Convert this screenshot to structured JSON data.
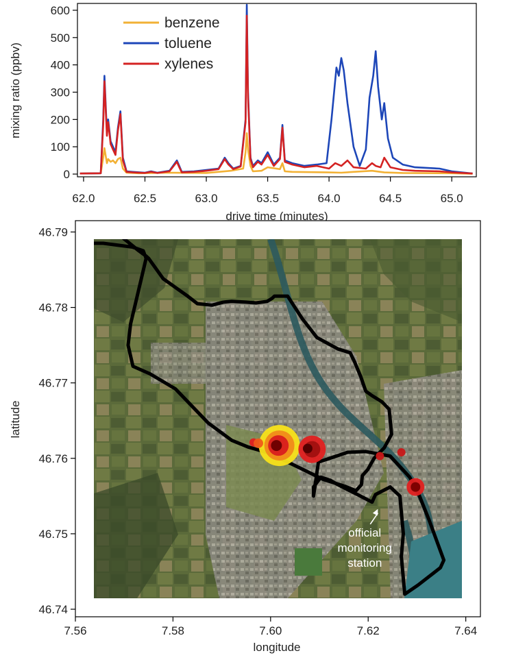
{
  "chart_data": [
    {
      "type": "line",
      "xlabel": "drive time (minutes)",
      "ylabel": "mixing ratio (ppbv)",
      "xlim": [
        61.95,
        65.2
      ],
      "ylim": [
        -10,
        625
      ],
      "xticks": [
        62.0,
        62.5,
        63.0,
        63.5,
        64.0,
        64.5,
        65.0
      ],
      "xtick_labels": [
        "62.0",
        "62.5",
        "63.0",
        "63.5",
        "64.0",
        "64.5",
        "65.0"
      ],
      "yticks": [
        0,
        100,
        200,
        300,
        400,
        500,
        600
      ],
      "ytick_labels": [
        "0",
        "100",
        "200",
        "300",
        "400",
        "500",
        "600"
      ],
      "legend_position": "top-left",
      "series": [
        {
          "name": "benzene",
          "color": "#f2b135",
          "x": [
            61.97,
            62.14,
            62.16,
            62.17,
            62.19,
            62.2,
            62.22,
            62.24,
            62.26,
            62.28,
            62.3,
            62.32,
            62.35,
            62.45,
            62.7,
            63.0,
            63.2,
            63.3,
            63.32,
            63.33,
            63.34,
            63.36,
            63.38,
            63.45,
            63.5,
            63.6,
            63.62,
            63.64,
            63.7,
            64.0,
            64.1,
            64.2,
            64.35,
            64.45,
            64.6,
            65.0,
            65.17
          ],
          "values": [
            2,
            3,
            60,
            95,
            40,
            55,
            45,
            50,
            40,
            55,
            60,
            20,
            5,
            3,
            5,
            4,
            12,
            20,
            80,
            150,
            90,
            30,
            10,
            12,
            25,
            18,
            40,
            10,
            8,
            6,
            5,
            8,
            12,
            6,
            4,
            3,
            1
          ]
        },
        {
          "name": "toluene",
          "color": "#1d46b8",
          "x": [
            61.97,
            62.14,
            62.16,
            62.17,
            62.19,
            62.2,
            62.22,
            62.24,
            62.26,
            62.28,
            62.3,
            62.32,
            62.35,
            62.4,
            62.5,
            62.55,
            62.6,
            62.7,
            62.76,
            62.78,
            62.8,
            62.9,
            63.0,
            63.1,
            63.15,
            63.18,
            63.22,
            63.28,
            63.32,
            63.33,
            63.34,
            63.36,
            63.38,
            63.42,
            63.45,
            63.5,
            63.55,
            63.6,
            63.62,
            63.64,
            63.7,
            63.8,
            63.9,
            63.98,
            64.02,
            64.06,
            64.08,
            64.1,
            64.12,
            64.15,
            64.2,
            64.25,
            64.3,
            64.33,
            64.36,
            64.38,
            64.4,
            64.43,
            64.45,
            64.48,
            64.52,
            64.6,
            64.7,
            64.9,
            65.0,
            65.17
          ],
          "values": [
            2,
            3,
            200,
            360,
            150,
            200,
            120,
            100,
            80,
            170,
            230,
            60,
            10,
            8,
            5,
            10,
            5,
            12,
            50,
            30,
            8,
            10,
            15,
            20,
            60,
            40,
            20,
            30,
            200,
            620,
            300,
            60,
            30,
            50,
            40,
            80,
            35,
            60,
            180,
            50,
            40,
            30,
            35,
            40,
            200,
            390,
            360,
            425,
            380,
            260,
            100,
            30,
            90,
            280,
            360,
            450,
            320,
            200,
            260,
            130,
            60,
            35,
            25,
            20,
            10,
            2
          ]
        },
        {
          "name": "xylenes",
          "color": "#d42222",
          "x": [
            61.97,
            62.14,
            62.16,
            62.17,
            62.19,
            62.2,
            62.22,
            62.24,
            62.26,
            62.28,
            62.3,
            62.32,
            62.35,
            62.4,
            62.5,
            62.55,
            62.6,
            62.7,
            62.76,
            62.78,
            62.8,
            62.9,
            63.0,
            63.1,
            63.15,
            63.18,
            63.22,
            63.28,
            63.32,
            63.33,
            63.34,
            63.36,
            63.38,
            63.42,
            63.45,
            63.5,
            63.55,
            63.6,
            63.62,
            63.64,
            63.7,
            63.8,
            63.9,
            64.0,
            64.05,
            64.1,
            64.15,
            64.2,
            64.3,
            64.35,
            64.38,
            64.42,
            64.45,
            64.5,
            64.6,
            64.7,
            64.9,
            65.0,
            65.17
          ],
          "values": [
            2,
            3,
            180,
            340,
            140,
            190,
            110,
            90,
            70,
            160,
            220,
            50,
            8,
            6,
            4,
            8,
            4,
            10,
            45,
            25,
            6,
            8,
            12,
            18,
            55,
            35,
            18,
            28,
            190,
            580,
            280,
            55,
            25,
            45,
            35,
            70,
            30,
            55,
            170,
            45,
            35,
            25,
            30,
            20,
            40,
            30,
            50,
            25,
            20,
            40,
            30,
            25,
            60,
            25,
            15,
            12,
            10,
            6,
            2
          ]
        }
      ]
    },
    {
      "type": "scatter",
      "xlabel": "longitude",
      "ylabel": "latitude",
      "xlim": [
        7.56,
        7.643
      ],
      "ylim": [
        46.739,
        46.7915
      ],
      "xticks": [
        7.56,
        7.58,
        7.6,
        7.62,
        7.64
      ],
      "xtick_labels": [
        "7.56",
        "7.58",
        "7.60",
        "7.62",
        "7.64"
      ],
      "yticks": [
        46.74,
        46.75,
        46.76,
        46.77,
        46.78,
        46.79
      ],
      "ytick_labels": [
        "46.74",
        "46.75",
        "46.76",
        "46.77",
        "46.78",
        "46.79"
      ],
      "background": "aerial-image",
      "track": {
        "name": "drive route",
        "color": "#000000",
        "lon": [
          7.5605,
          7.562,
          7.565,
          7.567,
          7.569,
          7.573,
          7.5745,
          7.575,
          7.578,
          7.583,
          7.585,
          7.588,
          7.5903,
          7.592,
          7.595,
          7.597,
          7.5993,
          7.6003,
          7.6008,
          7.6035,
          7.6065,
          7.6095,
          7.6138,
          7.6163,
          7.6172,
          7.6185,
          7.6195,
          7.6208,
          7.6228,
          7.6243,
          7.6248,
          7.6233,
          7.6212,
          7.6199,
          7.6188,
          7.6186,
          7.6175,
          7.6152,
          7.6108,
          7.6064,
          7.5997,
          7.5954,
          7.592,
          7.5872,
          7.5805,
          7.5753,
          7.5718,
          7.5708,
          7.5713,
          7.5723,
          7.5745,
          7.5739,
          7.5717,
          7.5657,
          7.5605
        ],
        "lat": [
          46.7885,
          46.789,
          46.7895,
          46.7898,
          46.7896,
          46.7875,
          46.7868,
          46.7865,
          46.7838,
          46.7815,
          46.7805,
          46.7803,
          46.7807,
          46.7808,
          46.7807,
          46.7806,
          46.7808,
          46.7812,
          46.7815,
          46.7815,
          46.7785,
          46.776,
          46.7745,
          46.774,
          46.7728,
          46.7708,
          46.7689,
          46.7683,
          46.7675,
          46.7665,
          46.7632,
          46.7614,
          46.76,
          46.7585,
          46.7577,
          46.7565,
          46.7557,
          46.7563,
          46.7572,
          46.7586,
          46.7607,
          46.7615,
          46.7624,
          46.7647,
          46.7692,
          46.7712,
          46.7722,
          46.775,
          46.7778,
          46.7805,
          46.7865,
          46.7875,
          46.788,
          46.7885,
          46.7885
        ]
      },
      "track2": {
        "name": "drive route (east loop)",
        "color": "#000000",
        "lon": [
          7.6098,
          7.6158,
          7.6195,
          7.6245,
          7.6285,
          7.6302,
          7.6325,
          7.6355,
          7.6348,
          7.6302,
          7.6275,
          7.6268,
          7.6272,
          7.6265,
          7.6245,
          7.6215,
          7.6208,
          7.6175,
          7.6138,
          7.6122,
          7.6103,
          7.6088,
          7.6088,
          7.6098
        ],
        "lon_note": "",
        "lat": [
          46.7595,
          46.7608,
          46.7609,
          46.7603,
          46.7575,
          46.7555,
          46.7518,
          46.7465,
          46.7455,
          46.7432,
          46.742,
          46.747,
          46.75,
          46.755,
          46.7562,
          46.7552,
          46.7542,
          46.7553,
          46.7565,
          46.7571,
          46.7575,
          46.7562,
          46.755,
          46.7595
        ]
      },
      "plumes": [
        {
          "lon": 7.6018,
          "lat": 46.7617,
          "size": 30,
          "color": "#f8e21a"
        },
        {
          "lon": 7.6018,
          "lat": 46.7617,
          "size": 22,
          "color": "#f08a1a"
        },
        {
          "lon": 7.6016,
          "lat": 46.7617,
          "size": 15,
          "color": "#d81e1e"
        },
        {
          "lon": 7.6012,
          "lat": 46.7617,
          "size": 8,
          "color": "#6a0000"
        },
        {
          "lon": 7.5965,
          "lat": 46.7621,
          "size": 6,
          "color": "#e02020"
        },
        {
          "lon": 7.5975,
          "lat": 46.762,
          "size": 7,
          "color": "#f05a1a"
        },
        {
          "lon": 7.6085,
          "lat": 46.7612,
          "size": 20,
          "color": "#e02020"
        },
        {
          "lon": 7.6085,
          "lat": 46.7612,
          "size": 12,
          "color": "#a01010"
        },
        {
          "lon": 7.6076,
          "lat": 46.7613,
          "size": 7,
          "color": "#500000"
        },
        {
          "lon": 7.6297,
          "lat": 46.7562,
          "size": 13,
          "color": "#e02020"
        },
        {
          "lon": 7.6297,
          "lat": 46.7562,
          "size": 7,
          "color": "#7a0000"
        },
        {
          "lon": 7.6224,
          "lat": 46.7603,
          "size": 6,
          "color": "#c81818"
        },
        {
          "lon": 7.6268,
          "lat": 46.7608,
          "size": 6,
          "color": "#c81818"
        }
      ],
      "annotation": {
        "lines": [
          "official",
          "monitoring",
          "station"
        ],
        "arrow_to_lon": 7.622,
        "arrow_to_lat": 46.7533,
        "text_lon": 7.6193,
        "text_lat": 46.748
      }
    }
  ]
}
